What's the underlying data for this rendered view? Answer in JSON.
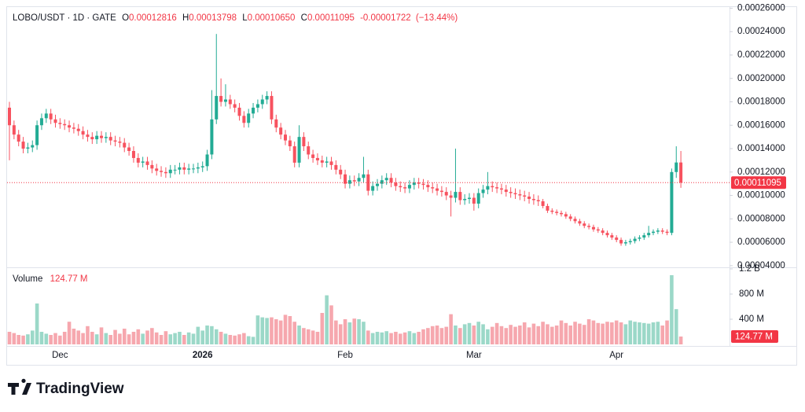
{
  "brand": "TradingView",
  "chart_data": {
    "type": "candlestick",
    "title": "LOBO/USDT · 1D · GATE",
    "legend": {
      "keys": [
        "O",
        "H",
        "L",
        "C"
      ],
      "values": [
        "0.00012816",
        "0.00013798",
        "0.00010650",
        "0.00011095"
      ],
      "change": "-0.00001722",
      "change_pct": "(−13.44%)"
    },
    "volume_title": "Volume",
    "volume_last_label": "124.77 M",
    "up_color": "#22ab94",
    "down_color": "#f7525f",
    "volume_up_color": "#9bd8c8",
    "volume_down_color": "#f6a7ae",
    "last_line_color": "#f23645",
    "grid": false,
    "categories": [
      null,
      null,
      null,
      null,
      null,
      null,
      null,
      null,
      null,
      null,
      null,
      "Dec",
      null,
      null,
      null,
      null,
      null,
      null,
      null,
      null,
      null,
      null,
      null,
      null,
      null,
      null,
      null,
      null,
      null,
      null,
      null,
      null,
      null,
      null,
      null,
      null,
      null,
      null,
      null,
      null,
      null,
      null,
      "2026",
      null,
      null,
      null,
      null,
      null,
      null,
      null,
      null,
      null,
      null,
      null,
      null,
      null,
      null,
      null,
      null,
      null,
      null,
      null,
      null,
      null,
      null,
      null,
      null,
      null,
      null,
      null,
      null,
      null,
      null,
      "Feb",
      null,
      null,
      null,
      null,
      null,
      null,
      null,
      null,
      null,
      null,
      null,
      null,
      null,
      null,
      null,
      null,
      null,
      null,
      null,
      null,
      null,
      null,
      null,
      null,
      null,
      null,
      null,
      "Mar",
      null,
      null,
      null,
      null,
      null,
      null,
      null,
      null,
      null,
      null,
      null,
      null,
      null,
      null,
      null,
      null,
      null,
      null,
      null,
      null,
      null,
      null,
      null,
      null,
      null,
      null,
      null,
      null,
      null,
      null,
      "Apr",
      null,
      null,
      null,
      null,
      null,
      null,
      null,
      null,
      null,
      null,
      null,
      null,
      null,
      null
    ],
    "open": [
      0.000175,
      0.00016,
      0.000152,
      0.000146,
      0.00014,
      0.000141,
      0.000143,
      0.00016,
      0.000166,
      0.00017,
      0.000165,
      0.000162,
      0.000161,
      0.00016,
      0.000158,
      0.000157,
      0.000155,
      0.000152,
      0.00015,
      0.000148,
      0.000151,
      0.000149,
      0.00015,
      0.000147,
      0.000146,
      0.000145,
      0.000141,
      0.000138,
      0.000132,
      0.000128,
      0.000129,
      0.000126,
      0.000123,
      0.000121,
      0.00012,
      0.000119,
      0.000122,
      0.000122,
      0.000124,
      0.000122,
      0.000123,
      0.000123,
      0.000124,
      0.000125,
      0.000135,
      0.000165,
      0.000185,
      0.00018,
      0.000182,
      0.000178,
      0.000175,
      0.000168,
      0.000162,
      0.00017,
      0.000175,
      0.000178,
      0.000182,
      0.000185,
      0.000165,
      0.000158,
      0.000152,
      0.000147,
      0.000142,
      0.000128,
      0.00015,
      0.000142,
      0.000135,
      0.000132,
      0.00013,
      0.000128,
      0.000129,
      0.000126,
      0.000122,
      0.000118,
      0.00011,
      0.000113,
      0.000112,
      0.000115,
      0.000118,
      0.000104,
      0.000108,
      0.00011,
      0.000113,
      0.000115,
      0.000111,
      0.000108,
      0.000107,
      0.000106,
      0.000109,
      0.000111,
      0.00011,
      0.000109,
      0.000107,
      0.000106,
      0.000104,
      0.000103,
      0.0001,
      9.8e-05,
      0.000103,
      9.6e-05,
      9.7e-05,
      9.8e-05,
      9.3e-05,
      0.000102,
      0.000105,
      0.000108,
      0.000107,
      0.000106,
      0.000105,
      0.000103,
      0.000102,
      0.000101,
      0.0001,
      9.9e-05,
      9.7e-05,
      9.6e-05,
      9.5e-05,
      9.1e-05,
      8.7e-05,
      8.6e-05,
      8.5e-05,
      8.4e-05,
      8.2e-05,
      8e-05,
      7.8e-05,
      7.6e-05,
      7.4e-05,
      7.3e-05,
      7.1e-05,
      7e-05,
      6.8e-05,
      6.6e-05,
      6.4e-05,
      6.2e-05,
      5.9e-05,
      6e-05,
      6.1e-05,
      6.3e-05,
      6.4e-05,
      6.6e-05,
      6.8e-05,
      6.9e-05,
      7e-05,
      6.9e-05,
      6.8e-05,
      0.00012,
      0.00012816
    ],
    "high": [
      0.00018,
      0.000164,
      0.000156,
      0.00015,
      0.000145,
      0.000147,
      0.000164,
      0.00017,
      0.000174,
      0.000174,
      0.000169,
      0.000166,
      0.000165,
      0.000164,
      0.000162,
      0.000161,
      0.000159,
      0.000156,
      0.000154,
      0.000155,
      0.000155,
      0.000154,
      0.000154,
      0.000151,
      0.00015,
      0.000149,
      0.000145,
      0.000142,
      0.000136,
      0.000133,
      0.000133,
      0.00013,
      0.000127,
      0.000125,
      0.000124,
      0.000126,
      0.000126,
      0.000128,
      0.000128,
      0.000127,
      0.000127,
      0.000128,
      0.000129,
      0.000139,
      0.00019,
      0.000238,
      0.0002,
      0.000195,
      0.000186,
      0.000182,
      0.000179,
      0.000172,
      0.000174,
      0.000179,
      0.000182,
      0.000186,
      0.000189,
      0.000189,
      0.000169,
      0.000162,
      0.000156,
      0.000151,
      0.000146,
      0.00016,
      0.000154,
      0.000146,
      0.000139,
      0.000136,
      0.000134,
      0.000133,
      0.000133,
      0.00013,
      0.000126,
      0.000122,
      0.000117,
      0.000117,
      0.000119,
      0.000133,
      0.000122,
      0.000112,
      0.000114,
      0.000117,
      0.000119,
      0.000119,
      0.000115,
      0.000112,
      0.000111,
      0.000113,
      0.000115,
      0.000115,
      0.000114,
      0.000113,
      0.000111,
      0.00011,
      0.000108,
      0.000107,
      0.000104,
      0.00014,
      0.000107,
      0.000101,
      0.000102,
      0.000102,
      0.000106,
      0.000109,
      0.00012,
      0.000112,
      0.000111,
      0.00011,
      0.000109,
      0.000107,
      0.000106,
      0.000105,
      0.000104,
      0.000103,
      0.000101,
      0.0001,
      9.7e-05,
      9.3e-05,
      8.9e-05,
      8.8e-05,
      8.7e-05,
      8.6e-05,
      8.4e-05,
      8.2e-05,
      8e-05,
      7.8e-05,
      7.6e-05,
      7.5e-05,
      7.3e-05,
      7.2e-05,
      7e-05,
      6.8e-05,
      6.6e-05,
      6.4e-05,
      6.2e-05,
      6.3e-05,
      6.5e-05,
      6.6e-05,
      6.8e-05,
      7.4e-05,
      7.1e-05,
      7.2e-05,
      7.2e-05,
      7.1e-05,
      0.000123,
      0.000142,
      0.00013798
    ],
    "low": [
      0.00013,
      0.000148,
      0.000142,
      0.000136,
      0.000136,
      0.000137,
      0.000139,
      0.000156,
      0.000162,
      0.000161,
      0.000158,
      0.000157,
      0.000156,
      0.000154,
      0.000153,
      0.000151,
      0.000148,
      0.000146,
      0.000144,
      0.000144,
      0.000145,
      0.000145,
      0.000143,
      0.000142,
      0.000141,
      0.000137,
      0.000134,
      0.000128,
      0.000124,
      0.000124,
      0.000122,
      0.000119,
      0.000117,
      0.000116,
      0.000115,
      0.000115,
      0.000118,
      0.000118,
      0.000118,
      0.000118,
      0.000119,
      0.000119,
      0.00012,
      0.000121,
      0.000131,
      0.000161,
      0.000176,
      0.000176,
      0.000174,
      0.000171,
      0.000164,
      0.000158,
      0.000158,
      0.000166,
      0.000171,
      0.000174,
      0.000178,
      0.000161,
      0.000154,
      0.000148,
      0.000143,
      0.000138,
      0.000124,
      0.000124,
      0.000138,
      0.000131,
      0.000128,
      0.000126,
      0.000124,
      0.000124,
      0.000122,
      0.000118,
      0.000114,
      0.000106,
      0.000106,
      0.000108,
      0.000108,
      0.000111,
      0.0001,
      0.0001,
      0.000104,
      0.000106,
      0.000109,
      0.000107,
      0.000104,
      0.000103,
      0.000102,
      0.000102,
      0.000105,
      0.000106,
      0.000105,
      0.000103,
      0.000102,
      0.0001,
      9.9e-05,
      9.6e-05,
      8.2e-05,
      9.4e-05,
      9.2e-05,
      9.2e-05,
      9.3e-05,
      8.7e-05,
      8.9e-05,
      9.8e-05,
      0.000101,
      0.000103,
      0.000102,
      0.000101,
      9.9e-05,
      9.8e-05,
      9.7e-05,
      9.6e-05,
      9.5e-05,
      9.3e-05,
      9.2e-05,
      9.1e-05,
      8.9e-05,
      8.5e-05,
      8.4e-05,
      8.3e-05,
      8.2e-05,
      8e-05,
      7.8e-05,
      7.6e-05,
      7.4e-05,
      7.2e-05,
      7.1e-05,
      6.9e-05,
      6.8e-05,
      6.6e-05,
      6.4e-05,
      6.2e-05,
      6e-05,
      5.7e-05,
      5.7e-05,
      5.8e-05,
      5.9e-05,
      6.1e-05,
      6.2e-05,
      6.4e-05,
      6.6e-05,
      6.7e-05,
      6.7e-05,
      6.6e-05,
      6.6e-05,
      0.000115,
      0.0001065
    ],
    "close": [
      0.00016,
      0.000152,
      0.000146,
      0.00014,
      0.000141,
      0.000143,
      0.00016,
      0.000166,
      0.00017,
      0.000165,
      0.000162,
      0.000161,
      0.00016,
      0.000158,
      0.000157,
      0.000155,
      0.000152,
      0.00015,
      0.000148,
      0.000151,
      0.000149,
      0.00015,
      0.000147,
      0.000146,
      0.000145,
      0.000141,
      0.000138,
      0.000132,
      0.000128,
      0.000129,
      0.000126,
      0.000123,
      0.000121,
      0.00012,
      0.000119,
      0.000122,
      0.000122,
      0.000124,
      0.000122,
      0.000123,
      0.000123,
      0.000124,
      0.000125,
      0.000135,
      0.000165,
      0.000185,
      0.00018,
      0.000182,
      0.000178,
      0.000175,
      0.000168,
      0.000162,
      0.00017,
      0.000175,
      0.000178,
      0.000182,
      0.000185,
      0.000165,
      0.000158,
      0.000152,
      0.000147,
      0.000142,
      0.000128,
      0.00015,
      0.000142,
      0.000135,
      0.000132,
      0.00013,
      0.000128,
      0.000129,
      0.000126,
      0.000122,
      0.000118,
      0.00011,
      0.000113,
      0.000112,
      0.000115,
      0.000118,
      0.000104,
      0.000108,
      0.00011,
      0.000113,
      0.000115,
      0.000111,
      0.000108,
      0.000107,
      0.000106,
      0.000109,
      0.000111,
      0.00011,
      0.000109,
      0.000107,
      0.000106,
      0.000104,
      0.000103,
      0.0001,
      9.8e-05,
      0.000103,
      9.6e-05,
      9.7e-05,
      9.8e-05,
      9.3e-05,
      0.000102,
      0.000105,
      0.000108,
      0.000107,
      0.000106,
      0.000105,
      0.000103,
      0.000102,
      0.000101,
      0.0001,
      9.9e-05,
      9.7e-05,
      9.6e-05,
      9.5e-05,
      9.1e-05,
      8.7e-05,
      8.6e-05,
      8.5e-05,
      8.4e-05,
      8.2e-05,
      8e-05,
      7.8e-05,
      7.6e-05,
      7.4e-05,
      7.3e-05,
      7.1e-05,
      7e-05,
      6.8e-05,
      6.6e-05,
      6.4e-05,
      6.2e-05,
      5.9e-05,
      6e-05,
      6.1e-05,
      6.3e-05,
      6.4e-05,
      6.6e-05,
      6.8e-05,
      6.9e-05,
      7e-05,
      6.9e-05,
      6.8e-05,
      0.00012,
      0.00012816,
      0.00011095
    ],
    "volume": [
      200000000.0,
      180000000.0,
      150000000.0,
      140000000.0,
      160000000.0,
      220000000.0,
      650000000.0,
      200000000.0,
      170000000.0,
      150000000.0,
      180000000.0,
      140000000.0,
      200000000.0,
      360000000.0,
      250000000.0,
      220000000.0,
      180000000.0,
      290000000.0,
      200000000.0,
      160000000.0,
      270000000.0,
      180000000.0,
      150000000.0,
      230000000.0,
      170000000.0,
      250000000.0,
      160000000.0,
      200000000.0,
      240000000.0,
      170000000.0,
      220000000.0,
      260000000.0,
      190000000.0,
      150000000.0,
      210000000.0,
      160000000.0,
      180000000.0,
      200000000.0,
      150000000.0,
      190000000.0,
      170000000.0,
      280000000.0,
      220000000.0,
      300000000.0,
      290000000.0,
      240000000.0,
      200000000.0,
      170000000.0,
      150000000.0,
      140000000.0,
      160000000.0,
      180000000.0,
      130000000.0,
      120000000.0,
      460000000.0,
      430000000.0,
      420000000.0,
      430000000.0,
      400000000.0,
      380000000.0,
      470000000.0,
      450000000.0,
      360000000.0,
      300000000.0,
      260000000.0,
      240000000.0,
      220000000.0,
      200000000.0,
      500000000.0,
      780000000.0,
      620000000.0,
      380000000.0,
      320000000.0,
      400000000.0,
      350000000.0,
      410000000.0,
      400000000.0,
      360000000.0,
      220000000.0,
      180000000.0,
      200000000.0,
      190000000.0,
      210000000.0,
      180000000.0,
      200000000.0,
      170000000.0,
      190000000.0,
      210000000.0,
      180000000.0,
      200000000.0,
      240000000.0,
      260000000.0,
      290000000.0,
      300000000.0,
      260000000.0,
      280000000.0,
      480000000.0,
      300000000.0,
      260000000.0,
      320000000.0,
      340000000.0,
      300000000.0,
      360000000.0,
      320000000.0,
      240000000.0,
      280000000.0,
      340000000.0,
      290000000.0,
      260000000.0,
      310000000.0,
      280000000.0,
      300000000.0,
      350000000.0,
      270000000.0,
      330000000.0,
      290000000.0,
      360000000.0,
      320000000.0,
      280000000.0,
      300000000.0,
      380000000.0,
      340000000.0,
      300000000.0,
      360000000.0,
      330000000.0,
      310000000.0,
      400000000.0,
      380000000.0,
      340000000.0,
      330000000.0,
      360000000.0,
      350000000.0,
      380000000.0,
      350000000.0,
      320000000.0,
      380000000.0,
      360000000.0,
      350000000.0,
      340000000.0,
      330000000.0,
      350000000.0,
      360000000.0,
      300000000.0,
      380000000.0,
      1100000000.0,
      560000000.0,
      124770000.0
    ],
    "ylim": [
      3.99e-05,
      0.0002603
    ],
    "yticks": [
      {
        "value": 4e-05,
        "label": "0.00004000"
      },
      {
        "value": 6e-05,
        "label": "0.00006000"
      },
      {
        "value": 8e-05,
        "label": "0.00008000"
      },
      {
        "value": 0.0001,
        "label": "0.00010000"
      },
      {
        "value": 0.00012,
        "label": "0.00012000"
      },
      {
        "value": 0.00014,
        "label": "0.00014000"
      },
      {
        "value": 0.00016,
        "label": "0.00016000"
      },
      {
        "value": 0.00018,
        "label": "0.00018000"
      },
      {
        "value": 0.0002,
        "label": "0.00020000"
      },
      {
        "value": 0.00022,
        "label": "0.00022000"
      },
      {
        "value": 0.00024,
        "label": "0.00024000"
      },
      {
        "value": 0.00026,
        "label": "0.00026000"
      }
    ],
    "y2lim": [
      0,
      1250000000.0
    ],
    "y2ticks": [
      {
        "value": 400000000.0,
        "label": "400 M"
      },
      {
        "value": 800000000.0,
        "label": "800 M"
      },
      {
        "value": 1200000000.0,
        "label": "1.2 B"
      }
    ]
  }
}
